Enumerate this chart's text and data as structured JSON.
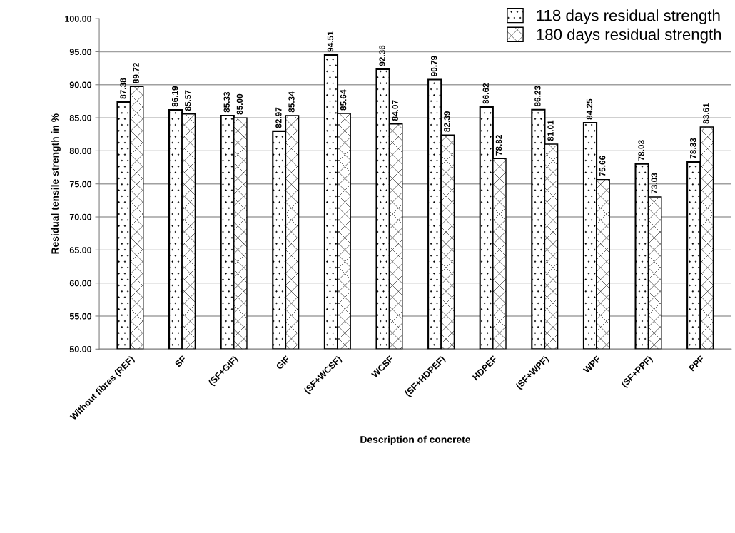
{
  "chart_data": {
    "type": "bar",
    "xlabel": "Description of concrete",
    "ylabel": "Residual tensile strength in %",
    "categories": [
      "Without fibres (REF)",
      "SF",
      "(SF+GIF)",
      "GIF",
      "(SF+WCSF)",
      "WCSF",
      "(SF+HDPEF)",
      "HDPEF",
      "(SF+WPF)",
      "WPF",
      "(SF+PPF)",
      "PPF"
    ],
    "series": [
      {
        "name": "118 days residual strength",
        "color": "#000000",
        "values": [
          87.38,
          86.19,
          85.33,
          82.97,
          94.51,
          92.36,
          90.79,
          86.62,
          86.23,
          84.25,
          78.03,
          78.33
        ],
        "value_labels": [
          "87.38",
          "86.19",
          "85.33",
          "82.97",
          "94.51",
          "92.36",
          "90.79",
          "86.62",
          "86.23",
          "84.25",
          "78.03",
          "78.33"
        ]
      },
      {
        "name": "180 days residual strength",
        "color": "#000000",
        "values": [
          89.72,
          85.57,
          85.0,
          85.34,
          85.64,
          84.07,
          82.39,
          78.82,
          81.01,
          75.66,
          73.03,
          83.61
        ],
        "value_labels": [
          "89.72",
          "85.57",
          "85.00",
          "85.34",
          "85.64",
          "84.07",
          "82.39",
          "78.82",
          "81.01",
          "75.66",
          "73.03",
          "83.61"
        ]
      }
    ],
    "ylim": [
      50,
      100
    ],
    "yticks": [
      {
        "value": 50,
        "label": "50.00"
      },
      {
        "value": 55,
        "label": "55.00"
      },
      {
        "value": 60,
        "label": "60.00"
      },
      {
        "value": 65,
        "label": "65.00"
      },
      {
        "value": 70,
        "label": "70.00"
      },
      {
        "value": 75,
        "label": "75.00"
      },
      {
        "value": 80,
        "label": "80.00"
      },
      {
        "value": 85,
        "label": "85.00"
      },
      {
        "value": 90,
        "label": "90.00"
      },
      {
        "value": 95,
        "label": "95.00"
      },
      {
        "value": 100,
        "label": "100.00"
      }
    ],
    "grid": "y",
    "legend": "top right"
  }
}
